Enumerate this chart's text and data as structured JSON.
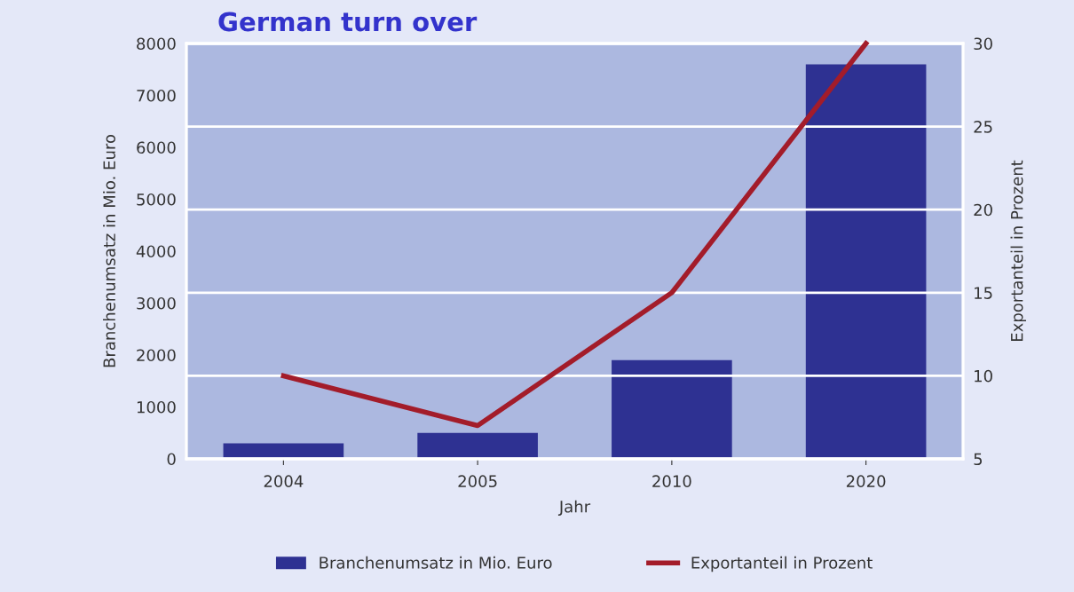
{
  "chart_data": {
    "type": "bar",
    "title": "German turn over",
    "xlabel": "Jahr",
    "ylabel": "Branchenumsatz in Mio. Euro",
    "y2label": "Exportanteil in Prozent",
    "categories": [
      "2004",
      "2005",
      "2010",
      "2020"
    ],
    "series": [
      {
        "name": "Branchenumsatz in Mio. Euro",
        "color": "#2e3192",
        "values": [
          300,
          500,
          1900,
          7600
        ]
      },
      {
        "name": "Exportanteil in Prozent",
        "type": "line",
        "axis": "y2",
        "color": "#a31c2a",
        "values": [
          10,
          7,
          15,
          30
        ]
      }
    ],
    "ylim": [
      0,
      8000
    ],
    "yticks": [
      0,
      1000,
      2000,
      3000,
      4000,
      5000,
      6000,
      7000,
      8000
    ],
    "y2lim": [
      5,
      30
    ],
    "y2ticks": [
      5,
      10,
      15,
      20,
      25,
      30
    ],
    "grid": "y",
    "legend": "bottom",
    "marker": "none",
    "line_style": "solid"
  }
}
